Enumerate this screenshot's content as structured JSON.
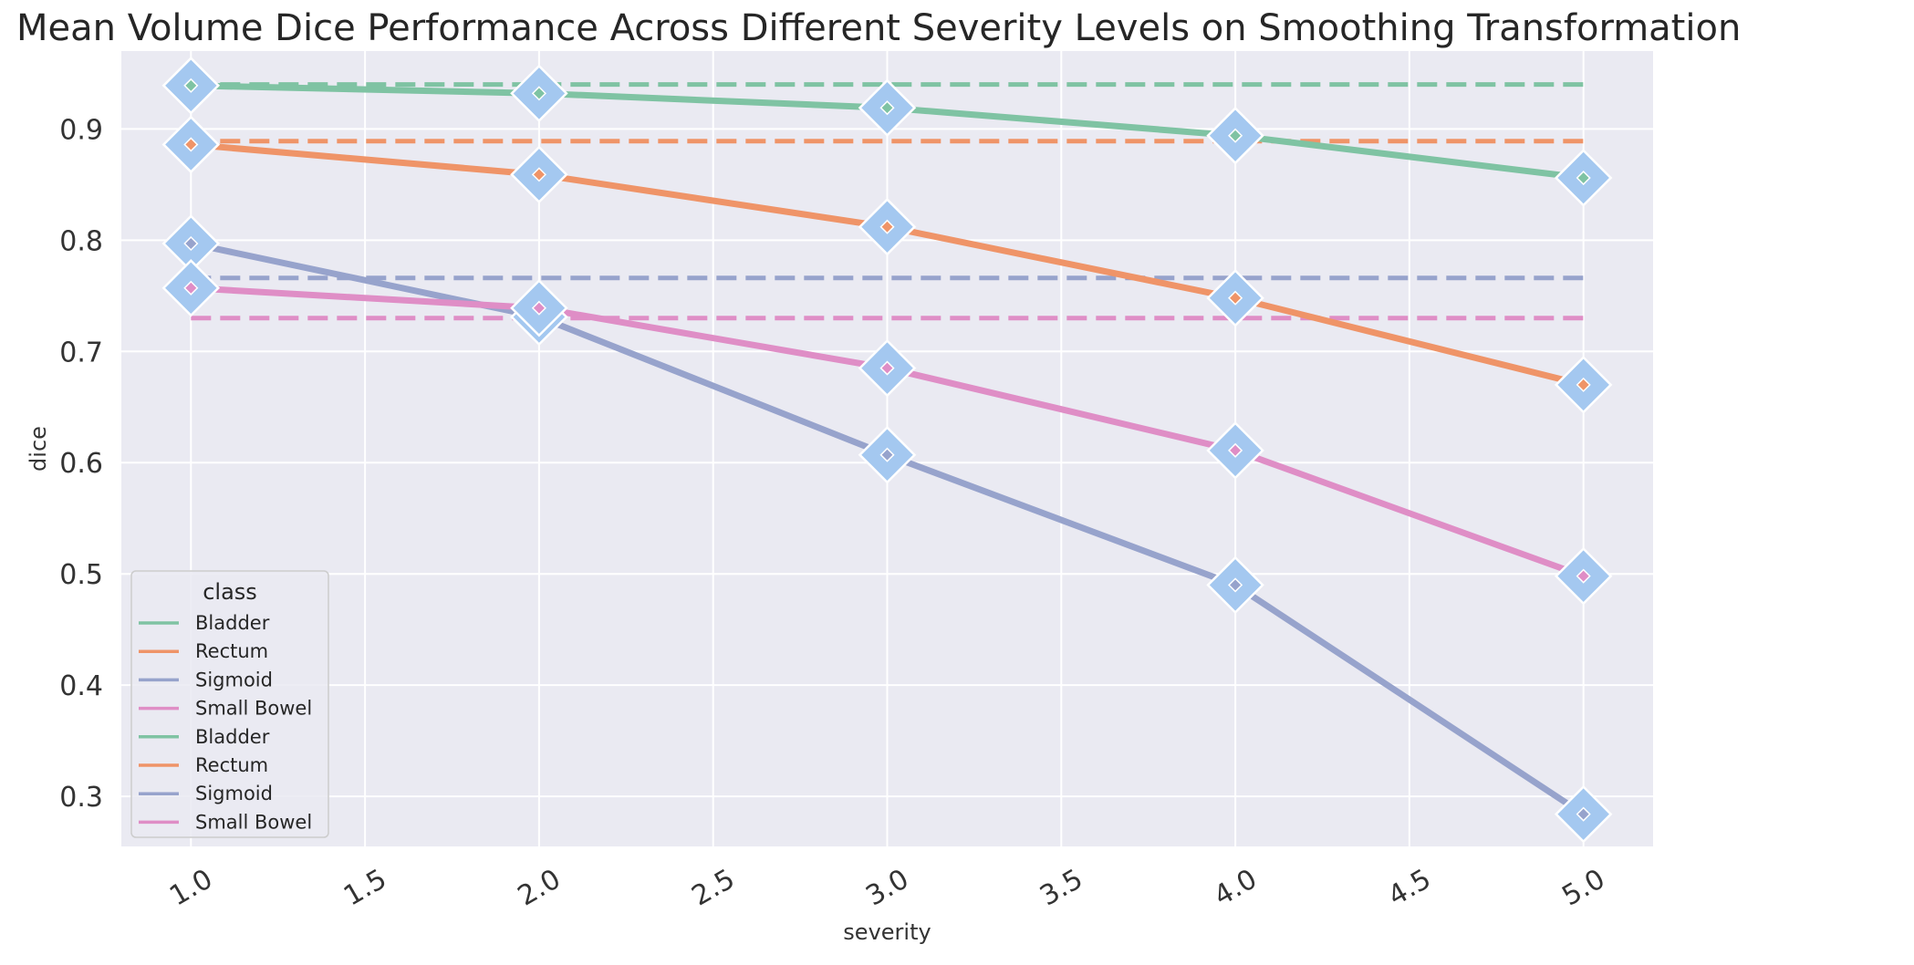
{
  "chart_data": {
    "type": "line",
    "title": "Mean Volume Dice Performance Across Different Severity Levels on Smoothing Transformation",
    "xlabel": "severity",
    "ylabel": "dice",
    "xlim": [
      0.8,
      5.2
    ],
    "ylim": [
      0.255,
      0.97
    ],
    "x_ticks": [
      1.0,
      1.5,
      2.0,
      2.5,
      3.0,
      3.5,
      4.0,
      4.5,
      5.0
    ],
    "x_tick_labels": [
      "1.0",
      "1.5",
      "2.0",
      "2.5",
      "3.0",
      "3.5",
      "4.0",
      "4.5",
      "5.0"
    ],
    "y_ticks": [
      0.3,
      0.4,
      0.5,
      0.6,
      0.7,
      0.8,
      0.9
    ],
    "y_tick_labels": [
      "0.3",
      "0.4",
      "0.5",
      "0.6",
      "0.7",
      "0.8",
      "0.9"
    ],
    "grid": true,
    "background": "#eaeaf2",
    "marker_color": "#a4c8f0",
    "x": [
      1,
      2,
      3,
      4,
      5
    ],
    "series": [
      {
        "name": "Bladder",
        "color": "#7fc3a3",
        "values": [
          0.939,
          0.932,
          0.919,
          0.894,
          0.856
        ]
      },
      {
        "name": "Rectum",
        "color": "#ef9468",
        "values": [
          0.886,
          0.859,
          0.812,
          0.748,
          0.67
        ]
      },
      {
        "name": "Sigmoid",
        "color": "#97a3cc",
        "values": [
          0.797,
          0.731,
          0.607,
          0.49,
          0.284
        ]
      },
      {
        "name": "Small Bowel",
        "color": "#df8ec6",
        "values": [
          0.757,
          0.739,
          0.685,
          0.611,
          0.498
        ]
      }
    ],
    "reference_lines": [
      {
        "name": "Bladder",
        "color": "#7fc3a3",
        "value": 0.94
      },
      {
        "name": "Rectum",
        "color": "#ef9468",
        "value": 0.889
      },
      {
        "name": "Sigmoid",
        "color": "#97a3cc",
        "value": 0.766
      },
      {
        "name": "Small Bowel",
        "color": "#df8ec6",
        "value": 0.73
      }
    ],
    "legend": {
      "title": "class",
      "placement": "lower-left",
      "entries": [
        {
          "label": "Bladder",
          "color": "#7fc3a3"
        },
        {
          "label": "Rectum",
          "color": "#ef9468"
        },
        {
          "label": "Sigmoid",
          "color": "#97a3cc"
        },
        {
          "label": "Small Bowel",
          "color": "#df8ec6"
        },
        {
          "label": "Bladder",
          "color": "#7fc3a3"
        },
        {
          "label": "Rectum",
          "color": "#ef9468"
        },
        {
          "label": "Sigmoid",
          "color": "#97a3cc"
        },
        {
          "label": "Small Bowel",
          "color": "#df8ec6"
        }
      ]
    }
  }
}
